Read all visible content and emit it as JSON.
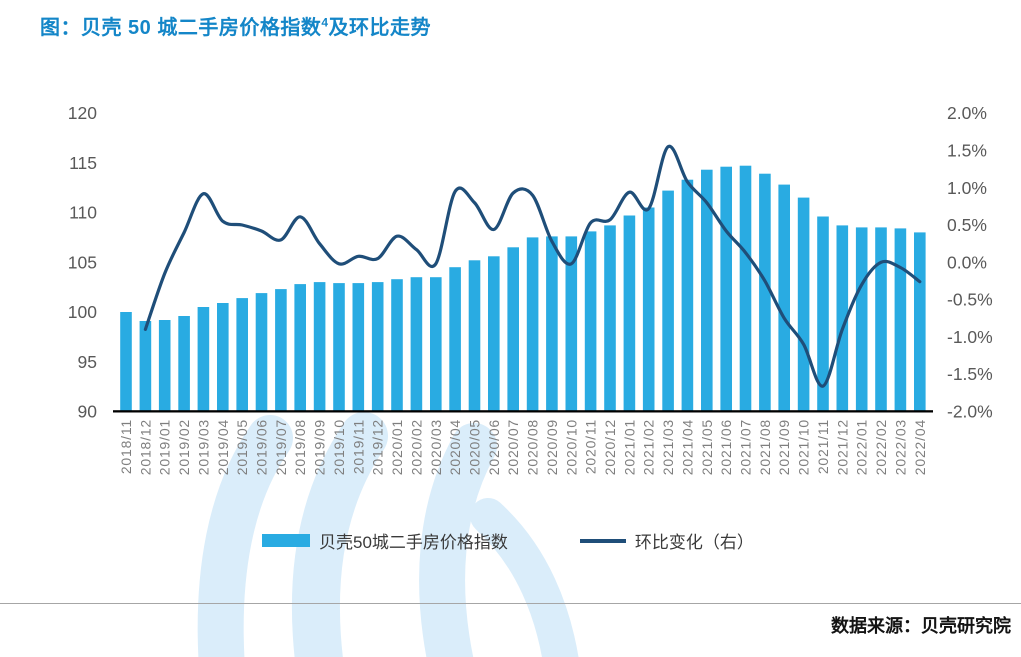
{
  "title": {
    "prefix": "图：",
    "main": "贝壳 50 城二手房价格指数",
    "superscript": "4",
    "suffix": "及环比走势"
  },
  "source_text": "数据来源：贝壳研究院",
  "legend": [
    {
      "label": "贝壳50城二手房价格指数",
      "type": "bar"
    },
    {
      "label": "环比变化（右）",
      "type": "line"
    }
  ],
  "colors": {
    "bar": "#29ABE2",
    "line": "#1F4E79",
    "title": "#1486C8",
    "axis_label": "#595959",
    "x_label": "#7F7F7F",
    "axis_line": "#000000",
    "watermark": "#DAEDFA",
    "divider": "#A6A6A6",
    "legend_text": "#3A3A3A",
    "source_text": "#141414"
  },
  "chart_data": {
    "type": "bar",
    "note": "combo chart: bars = price index (left axis), smoothed line = month-over-month change % (right axis)",
    "categories": [
      "2018/11",
      "2018/12",
      "2019/01",
      "2019/02",
      "2019/03",
      "2019/04",
      "2019/05",
      "2019/06",
      "2019/07",
      "2019/08",
      "2019/09",
      "2019/10",
      "2019/11",
      "2019/12",
      "2020/01",
      "2020/02",
      "2020/03",
      "2020/04",
      "2020/05",
      "2020/06",
      "2020/07",
      "2020/08",
      "2020/09",
      "2020/10",
      "2020/11",
      "2020/12",
      "2021/01",
      "2021/02",
      "2021/03",
      "2021/04",
      "2021/05",
      "2021/06",
      "2021/07",
      "2021/08",
      "2021/09",
      "2021/10",
      "2021/11",
      "2021/12",
      "2022/01",
      "2022/02",
      "2022/03",
      "2022/04"
    ],
    "series": [
      {
        "name": "贝壳50城二手房价格指数",
        "type": "bar",
        "axis": "left",
        "values": [
          100.0,
          99.1,
          99.2,
          99.6,
          100.5,
          100.9,
          101.4,
          101.9,
          102.3,
          102.8,
          103.0,
          102.9,
          102.9,
          103.0,
          103.3,
          103.5,
          103.5,
          104.5,
          105.2,
          105.6,
          106.5,
          107.5,
          107.6,
          107.6,
          108.1,
          108.7,
          109.7,
          110.5,
          112.2,
          113.3,
          114.3,
          114.6,
          114.7,
          113.9,
          112.8,
          111.5,
          109.6,
          108.7,
          108.5,
          108.5,
          108.4,
          108.0
        ]
      },
      {
        "name": "环比变化（右）",
        "type": "line",
        "axis": "right",
        "values": [
          null,
          -0.9,
          -0.15,
          0.4,
          0.92,
          0.55,
          0.5,
          0.42,
          0.3,
          0.61,
          0.25,
          -0.02,
          0.08,
          0.05,
          0.35,
          0.17,
          -0.02,
          0.95,
          0.8,
          0.44,
          0.93,
          0.9,
          0.28,
          -0.02,
          0.53,
          0.57,
          0.94,
          0.72,
          1.55,
          1.08,
          0.8,
          0.42,
          0.13,
          -0.25,
          -0.75,
          -1.1,
          -1.66,
          -0.9,
          -0.3,
          0.0,
          -0.07,
          -0.26
        ]
      }
    ],
    "left_axis": {
      "min": 90,
      "max": 120,
      "step": 5,
      "ticks": [
        "120",
        "115",
        "110",
        "105",
        "100",
        "95",
        "90"
      ]
    },
    "right_axis": {
      "min": -2.0,
      "max": 2.0,
      "step": 0.5,
      "ticks": [
        "2.0%",
        "1.5%",
        "1.0%",
        "0.5%",
        "0.0%",
        "-0.5%",
        "-1.0%",
        "-1.5%",
        "-2.0%"
      ]
    },
    "grid": false,
    "legend_position": "bottom"
  }
}
